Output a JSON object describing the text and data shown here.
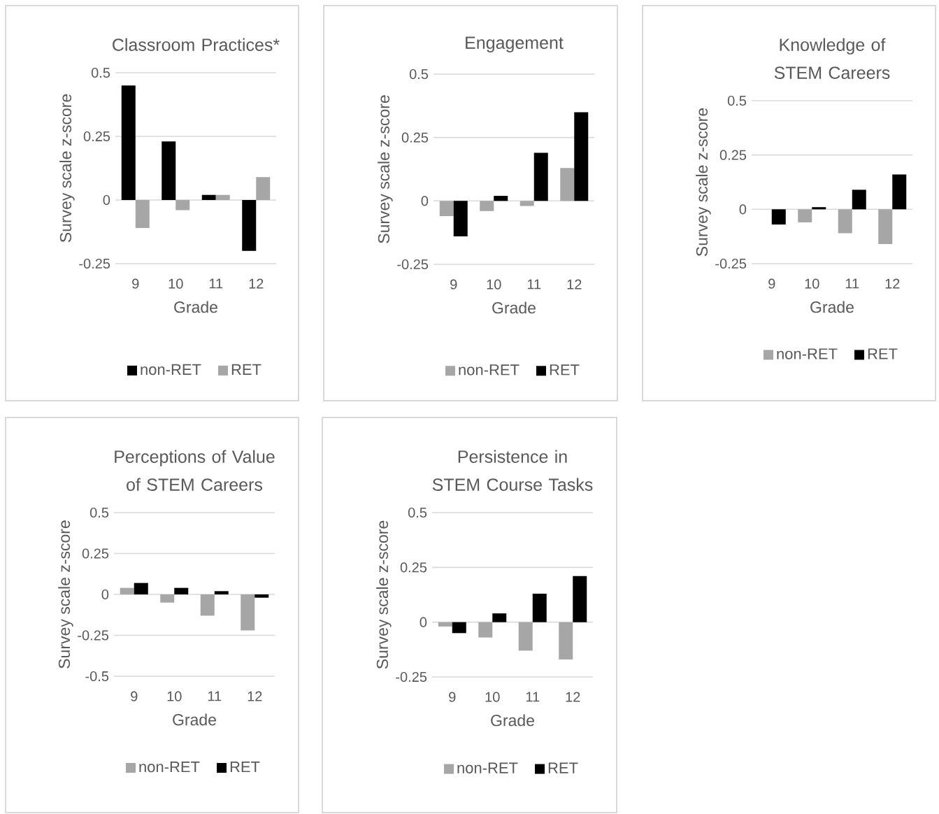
{
  "chart_data": [
    {
      "type": "bar",
      "title": "Classroom Practices*",
      "xlabel": "Grade",
      "ylabel": "Survey scale z-score",
      "categories": [
        "9",
        "10",
        "11",
        "12"
      ],
      "ylim": [
        -0.25,
        0.5
      ],
      "yticks": [
        -0.25,
        0,
        0.25,
        0.5
      ],
      "grid": "y",
      "legend": "bottom",
      "series": [
        {
          "name": "non-RET",
          "color": "#000000",
          "values": [
            0.45,
            0.23,
            0.02,
            -0.2
          ]
        },
        {
          "name": "RET",
          "color": "#a6a6a6",
          "values": [
            -0.11,
            -0.04,
            0.02,
            0.09
          ]
        }
      ]
    },
    {
      "type": "bar",
      "title": "Engagement",
      "xlabel": "Grade",
      "ylabel": "Survey scale z-score",
      "categories": [
        "9",
        "10",
        "11",
        "12"
      ],
      "ylim": [
        -0.25,
        0.5
      ],
      "yticks": [
        -0.25,
        0,
        0.25,
        0.5
      ],
      "grid": "y",
      "legend": "bottom",
      "series": [
        {
          "name": "non-RET",
          "color": "#a6a6a6",
          "values": [
            -0.06,
            -0.04,
            -0.02,
            0.13
          ]
        },
        {
          "name": "RET",
          "color": "#000000",
          "values": [
            -0.14,
            0.02,
            0.19,
            0.35
          ]
        }
      ]
    },
    {
      "type": "bar",
      "title": "Knowledge of STEM Careers",
      "xlabel": "Grade",
      "ylabel": "Survey scale z-score",
      "categories": [
        "9",
        "10",
        "11",
        "12"
      ],
      "ylim": [
        -0.25,
        0.5
      ],
      "yticks": [
        -0.25,
        0,
        0.25,
        0.5
      ],
      "grid": "y",
      "legend": "bottom",
      "series": [
        {
          "name": "non-RET",
          "color": "#a6a6a6",
          "values": [
            0,
            -0.06,
            -0.11,
            -0.16
          ]
        },
        {
          "name": "RET",
          "color": "#000000",
          "values": [
            -0.07,
            0.01,
            0.09,
            0.16
          ]
        }
      ]
    },
    {
      "type": "bar",
      "title": "Perceptions of Value of STEM Careers",
      "xlabel": "Grade",
      "ylabel": "Survey scale z-score",
      "categories": [
        "9",
        "10",
        "11",
        "12"
      ],
      "ylim": [
        -0.5,
        0.5
      ],
      "yticks": [
        -0.5,
        -0.25,
        0,
        0.25,
        0.5
      ],
      "grid": "y",
      "legend": "bottom",
      "series": [
        {
          "name": "non-RET",
          "color": "#a6a6a6",
          "values": [
            0.04,
            -0.05,
            -0.13,
            -0.22
          ]
        },
        {
          "name": "RET",
          "color": "#000000",
          "values": [
            0.07,
            0.04,
            0.02,
            -0.02
          ]
        }
      ]
    },
    {
      "type": "bar",
      "title": "Persistence in STEM Course Tasks",
      "xlabel": "Grade",
      "ylabel": "Survey scale z-score",
      "categories": [
        "9",
        "10",
        "11",
        "12"
      ],
      "ylim": [
        -0.25,
        0.5
      ],
      "yticks": [
        -0.25,
        0,
        0.25,
        0.5
      ],
      "grid": "y",
      "legend": "bottom",
      "series": [
        {
          "name": "non-RET",
          "color": "#a6a6a6",
          "values": [
            -0.02,
            -0.07,
            -0.13,
            -0.17
          ]
        },
        {
          "name": "RET",
          "color": "#000000",
          "values": [
            -0.05,
            0.04,
            0.13,
            0.21
          ]
        }
      ]
    }
  ]
}
